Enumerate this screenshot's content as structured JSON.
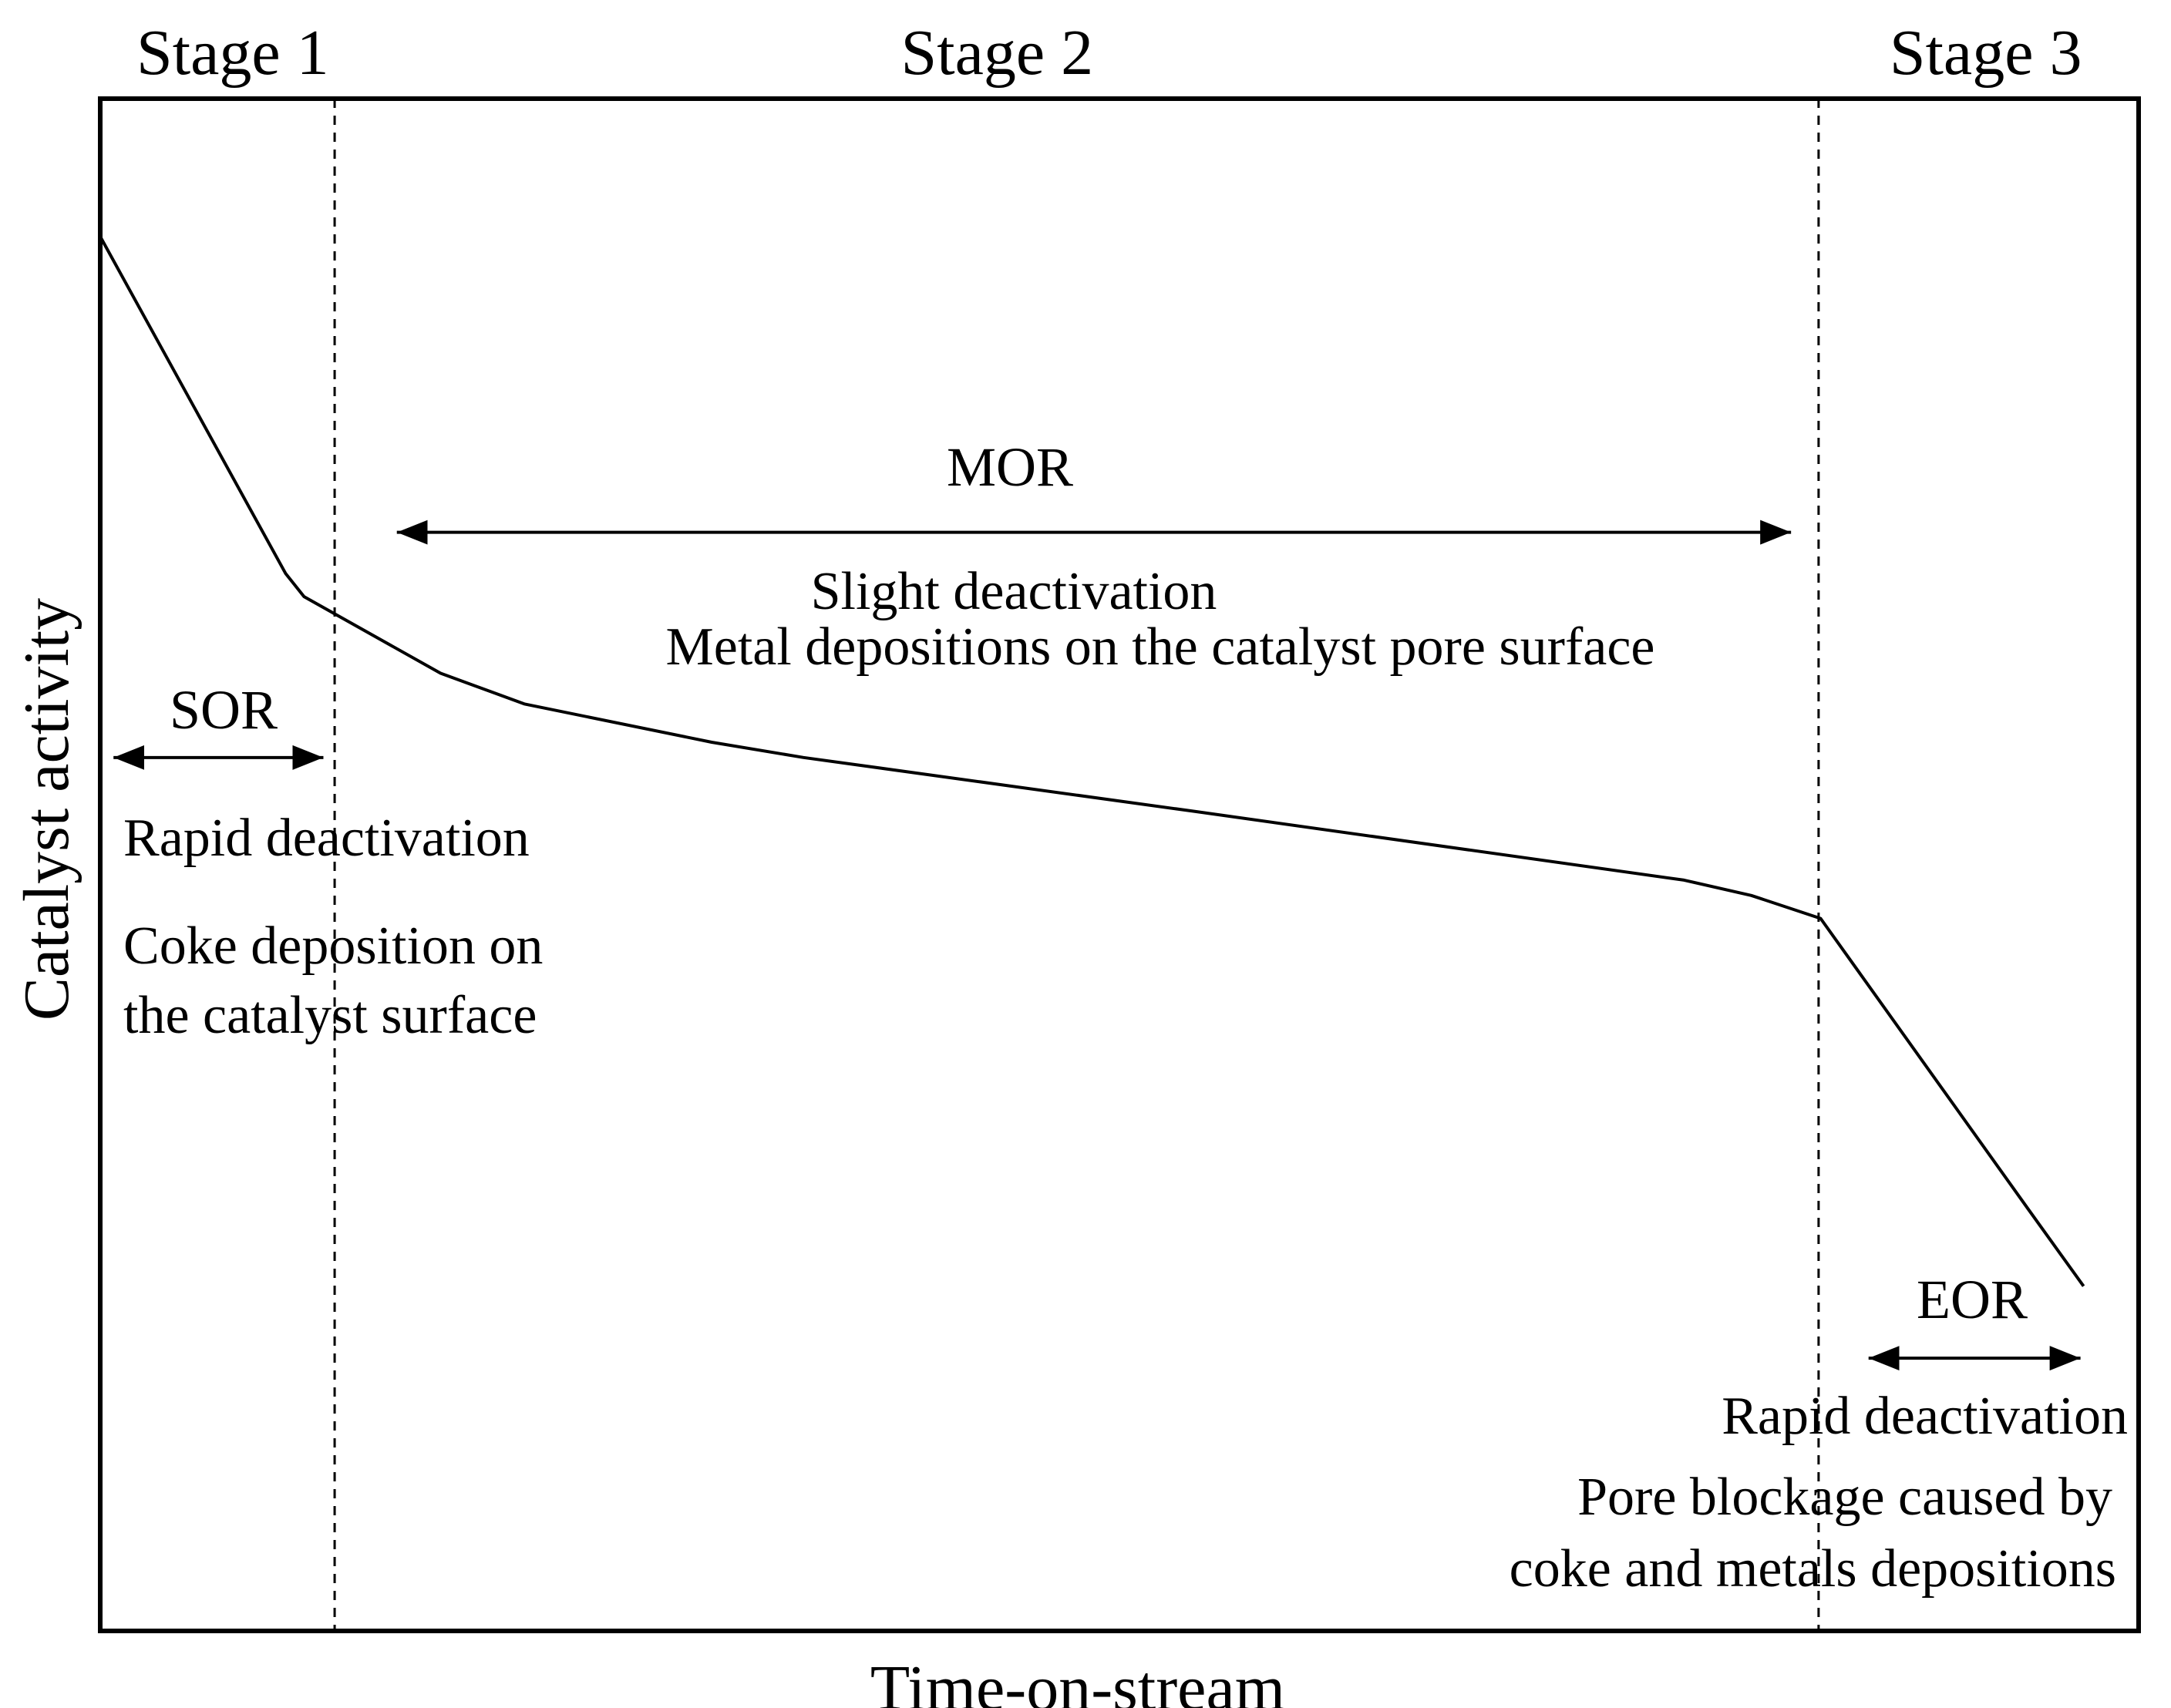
{
  "chart_data": {
    "type": "line",
    "title": "",
    "xlabel": "Time-on-stream",
    "ylabel": "Catalyst activity",
    "xlim": [
      0,
      100
    ],
    "ylim": [
      0,
      100
    ],
    "grid": false,
    "axis_ticks": false,
    "colors": {
      "line": "#000000",
      "frame": "#000000",
      "background": "#ffffff"
    },
    "series": [
      {
        "name": "Catalyst activity",
        "x": [
          0,
          9.1,
          10.0,
          16.7,
          20.8,
          30.0,
          34.5,
          53.6,
          77.7,
          81.0,
          84.4,
          94.6,
          97.3
        ],
        "y": [
          91,
          69,
          67.5,
          62.5,
          60.5,
          58,
          57,
          53.5,
          49,
          48,
          46.5,
          27.5,
          22.5
        ]
      }
    ],
    "stage_boundaries": [
      11.5,
      84.3
    ],
    "stages": [
      {
        "label": "Stage 1",
        "x_center": 6.5
      },
      {
        "label": "Stage 2",
        "x_center": 44.0
      },
      {
        "label": "Stage 3",
        "x_center": 92.5
      }
    ],
    "regions": [
      {
        "label": "SOR",
        "x_range": [
          0.5,
          11.1
        ],
        "y": 57,
        "notes": [
          "Rapid deactivation",
          "Coke deposition on",
          "the catalyst surface"
        ]
      },
      {
        "label": "MOR",
        "x_range": [
          14.4,
          83.1
        ],
        "y": 71.7,
        "notes": [
          "Slight deactivation",
          "Metal depositions on the catalyst pore surface"
        ]
      },
      {
        "label": "EOR",
        "x_range": [
          86.6,
          97.3
        ],
        "y": 17.8,
        "notes": [
          "Rapid deactivation",
          "Pore blockage caused by",
          "coke and metals depositions"
        ]
      }
    ]
  }
}
